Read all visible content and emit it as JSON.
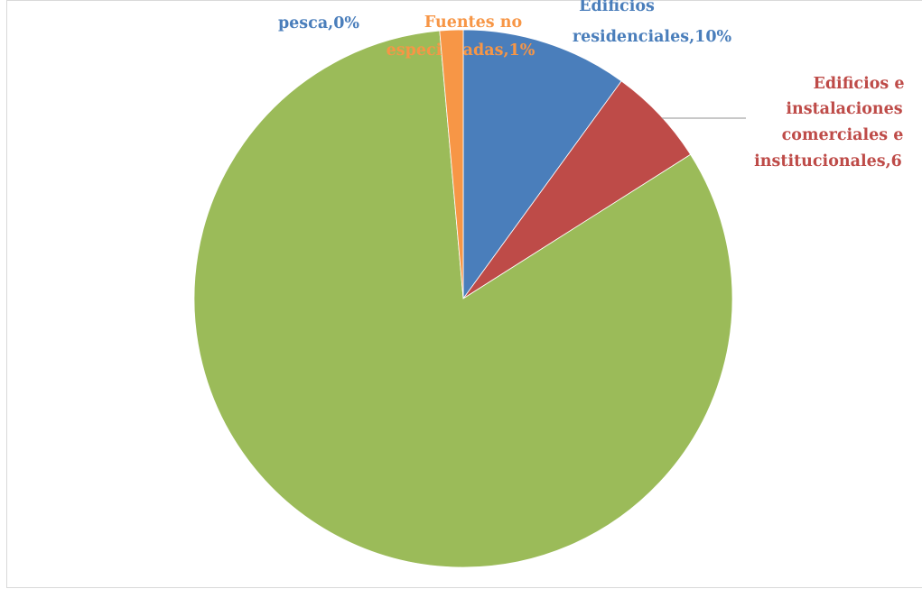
{
  "chart_data": {
    "type": "pie",
    "title": "",
    "start_angle_deg": 0,
    "direction": "clockwise",
    "slices": [
      {
        "label_lines": [
          "Edificios",
          "residenciales,10%"
        ],
        "value": 10,
        "color": "#4a7ebb"
      },
      {
        "label_lines": [
          "Edificios e",
          "instalaciones",
          "comerciales e",
          "institucionales,6"
        ],
        "value": 6,
        "color": "#be4b48"
      },
      {
        "label_lines": [],
        "value": 82.6,
        "color": "#9bbb59"
      },
      {
        "label_lines": [
          "pesca,0%"
        ],
        "value": 0,
        "color": "#4a7ebb"
      },
      {
        "label_lines": [
          "Fuentes no",
          "especificadas,1%"
        ],
        "value": 1.4,
        "color": "#f79646"
      }
    ]
  }
}
